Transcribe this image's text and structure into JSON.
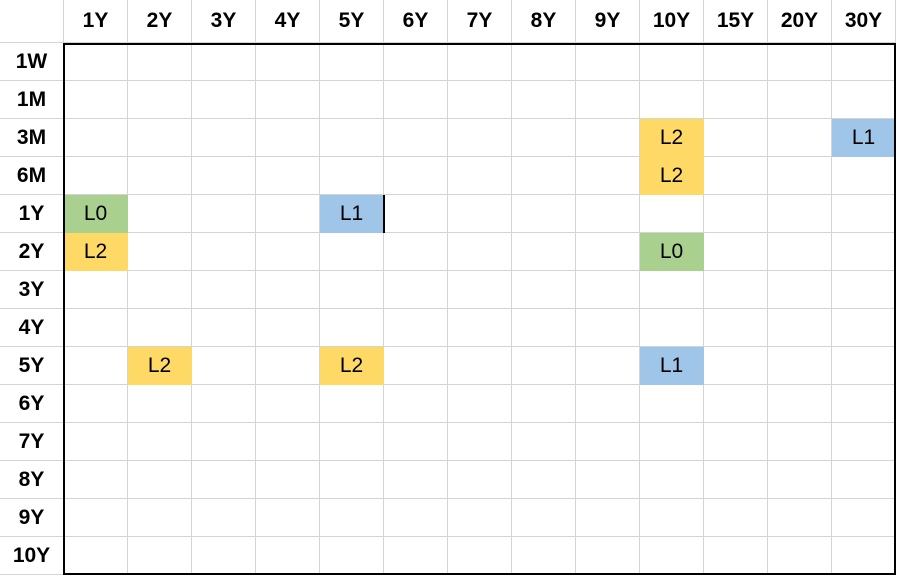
{
  "columns": [
    "1Y",
    "2Y",
    "3Y",
    "4Y",
    "5Y",
    "6Y",
    "7Y",
    "8Y",
    "9Y",
    "10Y",
    "15Y",
    "20Y",
    "30Y"
  ],
  "rows": [
    "1W",
    "1M",
    "3M",
    "6M",
    "1Y",
    "2Y",
    "3Y",
    "4Y",
    "5Y",
    "6Y",
    "7Y",
    "8Y",
    "9Y",
    "10Y"
  ],
  "colors": {
    "L0": "#a9d08e",
    "L1": "#9fc5e8",
    "L2": "#ffd966"
  },
  "cells": [
    {
      "row": 2,
      "col": 9,
      "label": "L2"
    },
    {
      "row": 2,
      "col": 12,
      "label": "L1"
    },
    {
      "row": 3,
      "col": 9,
      "label": "L2"
    },
    {
      "row": 4,
      "col": 0,
      "label": "L0"
    },
    {
      "row": 4,
      "col": 4,
      "label": "L1"
    },
    {
      "row": 5,
      "col": 0,
      "label": "L2"
    },
    {
      "row": 5,
      "col": 9,
      "label": "L0"
    },
    {
      "row": 8,
      "col": 1,
      "label": "L2"
    },
    {
      "row": 8,
      "col": 4,
      "label": "L2"
    },
    {
      "row": 8,
      "col": 9,
      "label": "L1"
    }
  ]
}
